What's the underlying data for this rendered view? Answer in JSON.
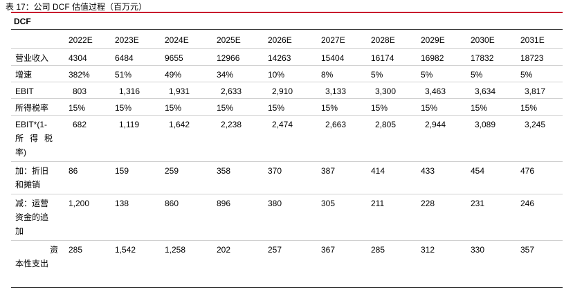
{
  "caption": "表 17：公司 DCF 估值过程（百万元）",
  "table_title": "DCF",
  "years": [
    "2022E",
    "2023E",
    "2024E",
    "2025E",
    "2026E",
    "2027E",
    "2028E",
    "2029E",
    "2030E",
    "2031E"
  ],
  "rows": [
    {
      "label": "营业收入",
      "values": [
        "4304",
        "6484",
        "9655",
        "12966",
        "14263",
        "15404",
        "16174",
        "16982",
        "17832",
        "18723"
      ]
    },
    {
      "label": "增速",
      "values": [
        "382%",
        "51%",
        "49%",
        "34%",
        "10%",
        "8%",
        "5%",
        "5%",
        "5%",
        "5%"
      ]
    },
    {
      "label": "EBIT",
      "values": [
        "803",
        "1,316",
        "1,931",
        "2,633",
        "2,910",
        "3,133",
        "3,300",
        "3,463",
        "3,634",
        "3,817"
      ]
    },
    {
      "label": "所得税率",
      "values": [
        "15%",
        "15%",
        "15%",
        "15%",
        "15%",
        "15%",
        "15%",
        "15%",
        "15%",
        "15%"
      ]
    },
    {
      "label_lines": [
        "EBIT*(1-",
        "所得税",
        "率)"
      ],
      "values": [
        "682",
        "1,119",
        "1,642",
        "2,238",
        "2,474",
        "2,663",
        "2,805",
        "2,944",
        "3,089",
        "3,245"
      ]
    },
    {
      "label_lines": [
        "加：折旧",
        "和摊销"
      ],
      "values": [
        "86",
        "159",
        "259",
        "358",
        "370",
        "387",
        "414",
        "433",
        "454",
        "476"
      ]
    },
    {
      "label_lines": [
        "减：运营",
        "资金的追",
        "加"
      ],
      "values": [
        "1,200",
        "138",
        "860",
        "896",
        "380",
        "305",
        "211",
        "228",
        "231",
        "246"
      ]
    },
    {
      "label_lines": [
        "资",
        "本性支出"
      ],
      "values": [
        "285",
        "1,542",
        "1,258",
        "202",
        "257",
        "367",
        "285",
        "312",
        "330",
        "357"
      ]
    }
  ]
}
